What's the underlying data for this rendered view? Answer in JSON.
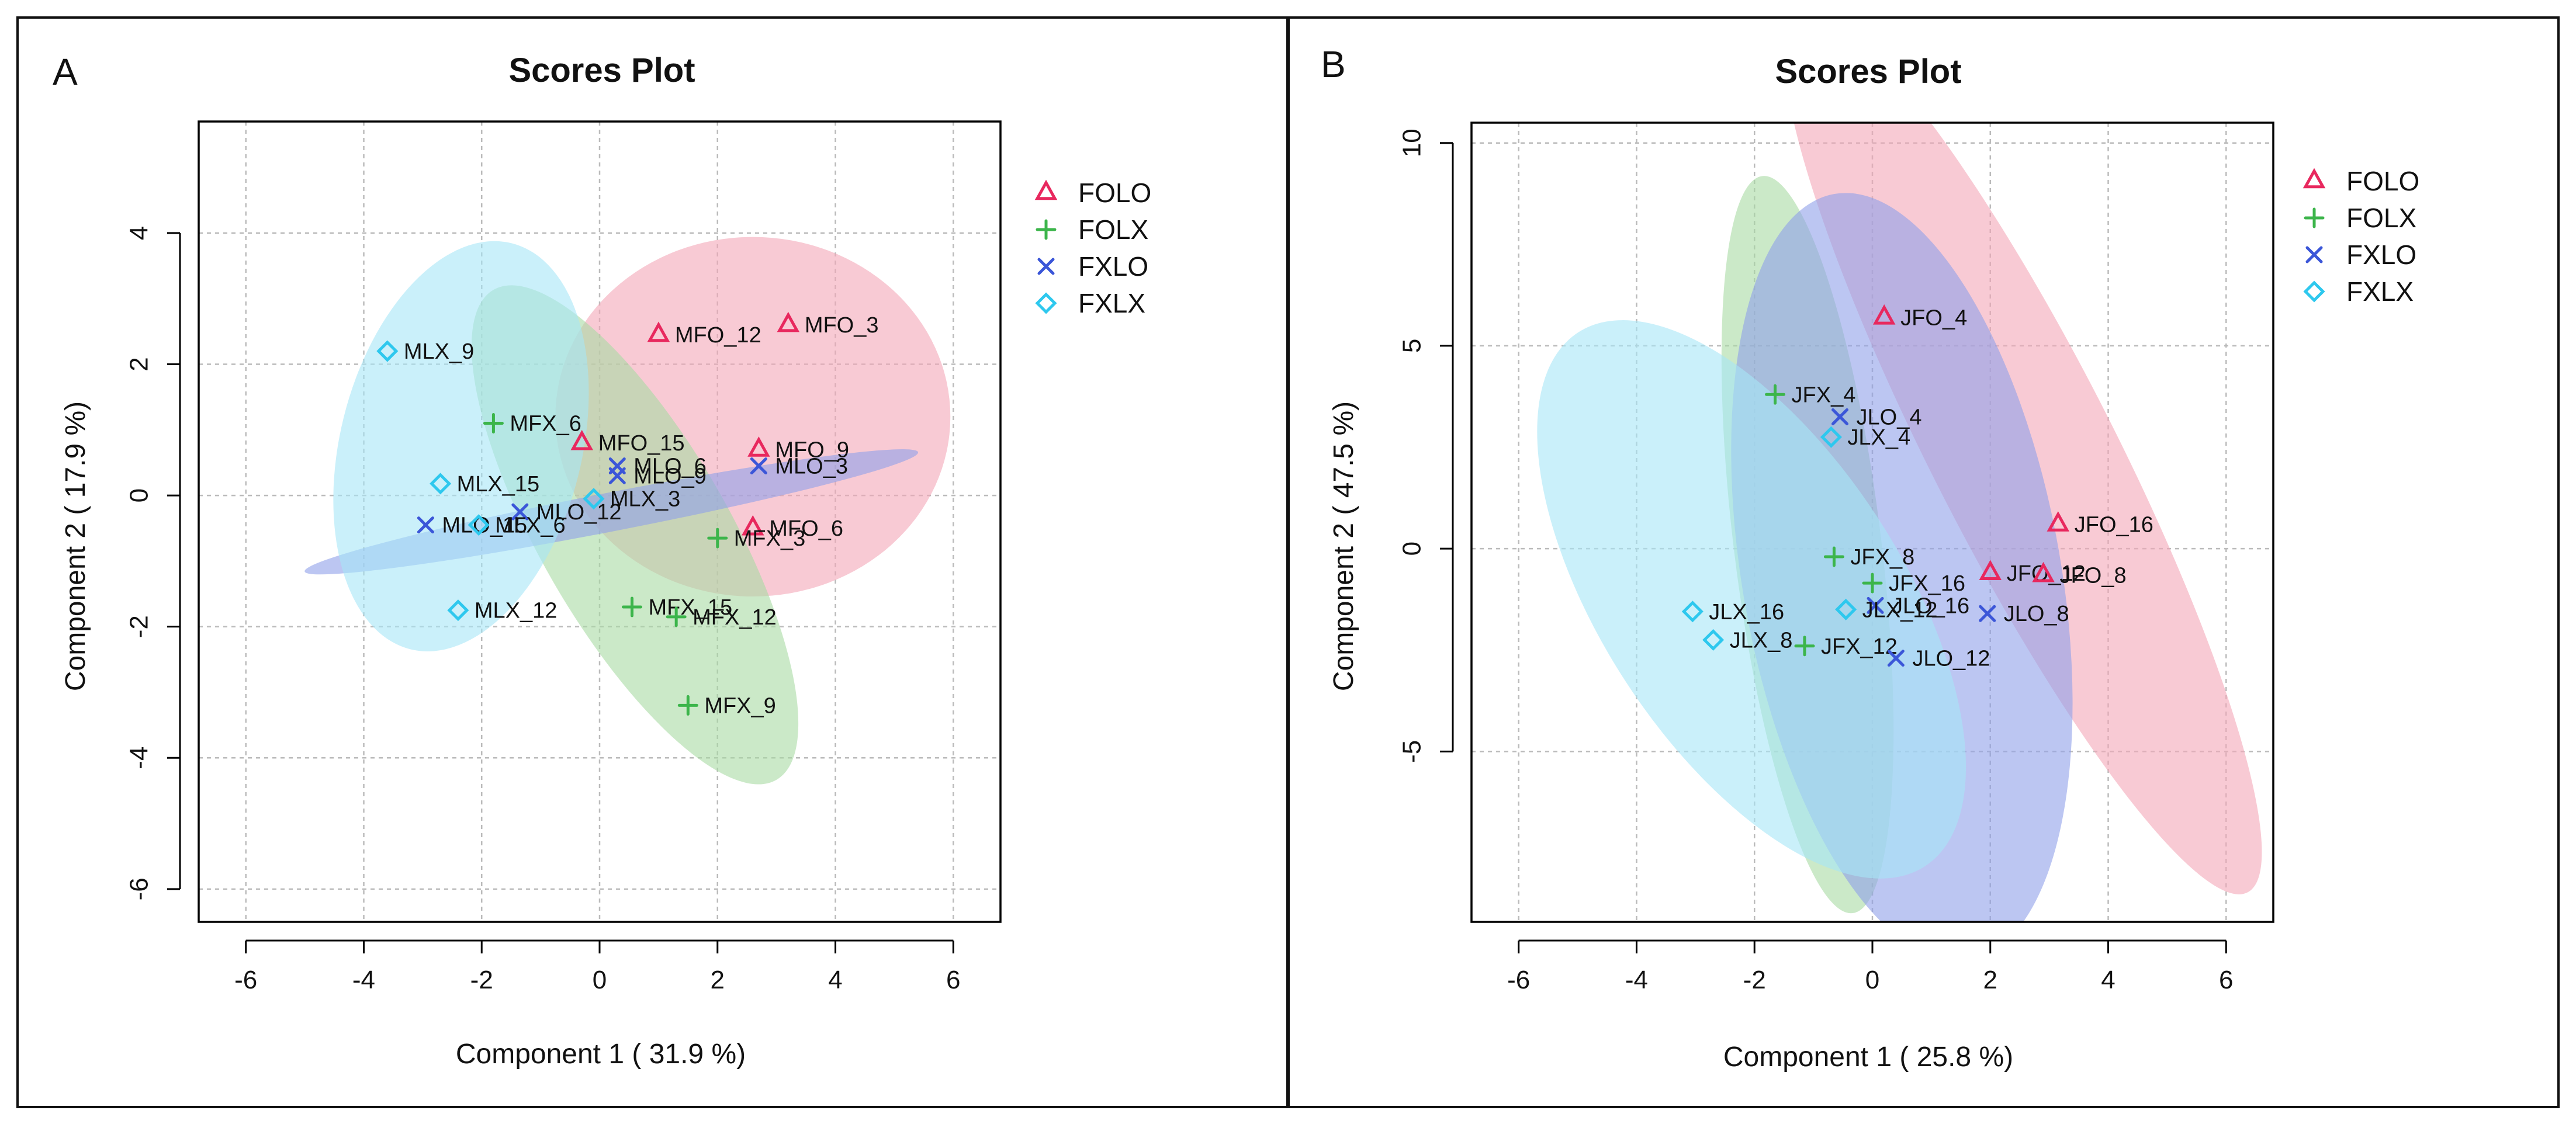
{
  "figure_name": "Scores Plot panels A and B",
  "chart_data": [
    {
      "type": "scatter",
      "panel": "A",
      "title": "Scores Plot",
      "xlabel": "Component 1 ( 31.9 %)",
      "ylabel": "Component 2 ( 17.9 %)",
      "xlim": [
        -6.8,
        6.8
      ],
      "ylim": [
        -6.5,
        5.7
      ],
      "xticks": [
        -6,
        -4,
        -2,
        0,
        2,
        4,
        6
      ],
      "yticks": [
        -6,
        -4,
        -2,
        0,
        2,
        4
      ],
      "grid": true,
      "legend_position": "right",
      "groups": [
        {
          "name": "FOLO",
          "marker": "triangle",
          "color": "#E8285E",
          "fill": "#F4A6B8",
          "ellipse": {
            "cx": 2.6,
            "cy": 1.2,
            "rx": 3.35,
            "ry": 3.05,
            "angle": 0
          }
        },
        {
          "name": "FOLX",
          "marker": "plus",
          "color": "#3CB54B",
          "fill": "#A8DAA3",
          "ellipse": {
            "cx": 0.6,
            "cy": -0.6,
            "rx": 4.8,
            "ry": 1.6,
            "angle": -60
          }
        },
        {
          "name": "FXLO",
          "marker": "x",
          "color": "#3B56D8",
          "fill": "#8FA0EA",
          "ellipse": {
            "cx": 0.2,
            "cy": -0.25,
            "rx": 5.3,
            "ry": 0.33,
            "angle": 11
          }
        },
        {
          "name": "FXLX",
          "marker": "diamond",
          "color": "#2EC8EE",
          "fill": "#A6E6F6",
          "ellipse": {
            "cx": -2.35,
            "cy": 0.75,
            "rx": 3.55,
            "ry": 2.05,
            "angle": 76
          }
        }
      ],
      "points": [
        {
          "label": "MFO_12",
          "group": "FOLO",
          "x": 1.0,
          "y": 2.45
        },
        {
          "label": "MFO_3",
          "group": "FOLO",
          "x": 3.2,
          "y": 2.6
        },
        {
          "label": "MFO_15",
          "group": "FOLO",
          "x": -0.3,
          "y": 0.8
        },
        {
          "label": "MFO_9",
          "group": "FOLO",
          "x": 2.7,
          "y": 0.7
        },
        {
          "label": "MFO_6",
          "group": "FOLO",
          "x": 2.6,
          "y": -0.5
        },
        {
          "label": "MFX_6",
          "group": "FOLX",
          "x": -1.8,
          "y": 1.1
        },
        {
          "label": "MFX_3",
          "group": "FOLX",
          "x": 2.0,
          "y": -0.65
        },
        {
          "label": "MFX_15",
          "group": "FOLX",
          "x": 0.55,
          "y": -1.7
        },
        {
          "label": "MFX_12",
          "group": "FOLX",
          "x": 1.3,
          "y": -1.85
        },
        {
          "label": "MFX_9",
          "group": "FOLX",
          "x": 1.5,
          "y": -3.2
        },
        {
          "label": "MLO_6",
          "group": "FXLO",
          "x": 0.3,
          "y": 0.45
        },
        {
          "label": "MLO_9",
          "group": "FXLO",
          "x": 0.3,
          "y": 0.3
        },
        {
          "label": "MLO_3",
          "group": "FXLO",
          "x": 2.7,
          "y": 0.45
        },
        {
          "label": "MLO_12",
          "group": "FXLO",
          "x": -1.35,
          "y": -0.25
        },
        {
          "label": "MLO_15",
          "group": "FXLO",
          "x": -2.95,
          "y": -0.45
        },
        {
          "label": "MLX_9",
          "group": "FXLX",
          "x": -3.6,
          "y": 2.2
        },
        {
          "label": "MLX_15",
          "group": "FXLX",
          "x": -2.7,
          "y": 0.18
        },
        {
          "label": "MLX_3",
          "group": "FXLX",
          "x": -0.1,
          "y": -0.05
        },
        {
          "label": "MLX_6",
          "group": "FXLX",
          "x": -2.05,
          "y": -0.45
        },
        {
          "label": "MLX_12",
          "group": "FXLX",
          "x": -2.4,
          "y": -1.75
        }
      ]
    },
    {
      "type": "scatter",
      "panel": "B",
      "title": "Scores Plot",
      "xlabel": "Component 1 ( 25.8 %)",
      "ylabel": "Component 2 ( 47.5 %)",
      "xlim": [
        -6.8,
        6.8
      ],
      "ylim": [
        -9.2,
        10.5
      ],
      "xticks": [
        -6,
        -4,
        -2,
        0,
        2,
        4,
        6
      ],
      "yticks": [
        -5,
        0,
        5,
        10
      ],
      "grid": true,
      "legend_position": "right",
      "groups": [
        {
          "name": "FOLO",
          "marker": "triangle",
          "color": "#E8285E",
          "fill": "#F4A6B8",
          "ellipse": {
            "cx": 2.55,
            "cy": 2.4,
            "rx": 8.4,
            "ry": 1.55,
            "angle": -63
          }
        },
        {
          "name": "FOLX",
          "marker": "plus",
          "color": "#3CB54B",
          "fill": "#A8DAA3",
          "ellipse": {
            "cx": -1.1,
            "cy": 0.1,
            "rx": 6.3,
            "ry": 1.25,
            "angle": -83
          }
        },
        {
          "name": "FXLO",
          "marker": "x",
          "color": "#3B56D8",
          "fill": "#8FA0EA",
          "ellipse": {
            "cx": 0.5,
            "cy": -0.7,
            "rx": 6.6,
            "ry": 2.7,
            "angle": -80
          }
        },
        {
          "name": "FXLX",
          "marker": "diamond",
          "color": "#2EC8EE",
          "fill": "#A6E6F6",
          "ellipse": {
            "cx": -2.05,
            "cy": -1.25,
            "rx": 5.4,
            "ry": 2.55,
            "angle": -57
          }
        }
      ],
      "points": [
        {
          "label": "JFO_4",
          "group": "FOLO",
          "x": 0.2,
          "y": 5.7
        },
        {
          "label": "JFO_16",
          "group": "FOLO",
          "x": 3.15,
          "y": 0.6
        },
        {
          "label": "JFO_12",
          "group": "FOLO",
          "x": 2.0,
          "y": -0.6
        },
        {
          "label": "JFO_8",
          "group": "FOLO",
          "x": 2.9,
          "y": -0.65
        },
        {
          "label": "JFX_4",
          "group": "FOLX",
          "x": -1.65,
          "y": 3.8
        },
        {
          "label": "JFX_8",
          "group": "FOLX",
          "x": -0.65,
          "y": -0.2
        },
        {
          "label": "JFX_16",
          "group": "FOLX",
          "x": 0.0,
          "y": -0.85
        },
        {
          "label": "JFX_12",
          "group": "FOLX",
          "x": -1.15,
          "y": -2.4
        },
        {
          "label": "JLO_4",
          "group": "FXLO",
          "x": -0.55,
          "y": 3.25
        },
        {
          "label": "JLO_16",
          "group": "FXLO",
          "x": 0.05,
          "y": -1.4
        },
        {
          "label": "JLO_8",
          "group": "FXLO",
          "x": 1.95,
          "y": -1.6
        },
        {
          "label": "JLO_12",
          "group": "FXLO",
          "x": 0.4,
          "y": -2.7
        },
        {
          "label": "JLX_4",
          "group": "FXLX",
          "x": -0.7,
          "y": 2.75
        },
        {
          "label": "JLX_12",
          "group": "FXLX",
          "x": -0.45,
          "y": -1.5
        },
        {
          "label": "JLX_16",
          "group": "FXLX",
          "x": -3.05,
          "y": -1.55
        },
        {
          "label": "JLX_8",
          "group": "FXLX",
          "x": -2.7,
          "y": -2.25
        }
      ]
    }
  ]
}
